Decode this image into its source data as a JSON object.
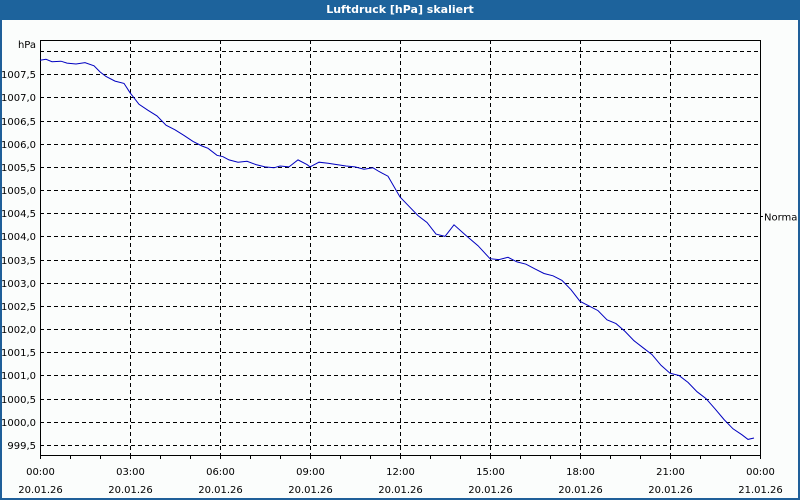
{
  "window": {
    "title": "Luftdruck [hPa] skaliert"
  },
  "chart_data": {
    "type": "line",
    "title": "Luftdruck [hPa] skaliert",
    "xlabel": "",
    "ylabel": "hPa",
    "ylim": [
      999.25,
      1008.2
    ],
    "y_ticks": [
      1007.5,
      1007.0,
      1006.5,
      1006.0,
      1005.5,
      1005.0,
      1004.5,
      1004.0,
      1003.5,
      1003.0,
      1002.5,
      1002.0,
      1001.5,
      1001.0,
      1000.5,
      1000.0,
      999.5
    ],
    "y_tick_labels": [
      "1007,5",
      "1007,0",
      "1006,5",
      "1006,0",
      "1005,5",
      "1005,0",
      "1004,5",
      "1004,0",
      "1003,5",
      "1003,0",
      "1002,5",
      "1002,0",
      "1001,5",
      "1001,0",
      "1000,5",
      "1000,0",
      "999,5"
    ],
    "x_ticks_hours": [
      0,
      3,
      6,
      9,
      12,
      15,
      18,
      21,
      24
    ],
    "x_tick_labels": [
      {
        "time": "00:00",
        "date": "20.01.26"
      },
      {
        "time": "03:00",
        "date": "20.01.26"
      },
      {
        "time": "06:00",
        "date": "20.01.26"
      },
      {
        "time": "09:00",
        "date": "20.01.26"
      },
      {
        "time": "12:00",
        "date": "20.01.26"
      },
      {
        "time": "15:00",
        "date": "20.01.26"
      },
      {
        "time": "18:00",
        "date": "20.01.26"
      },
      {
        "time": "21:00",
        "date": "20.01.26"
      },
      {
        "time": "00:00",
        "date": "21.01.26"
      }
    ],
    "right_axis_label": "Normal",
    "right_axis_value": 1004.45,
    "grid": true,
    "legend": null,
    "series": [
      {
        "name": "Luftdruck",
        "color": "#0000c0",
        "x_hours": [
          0.0,
          0.2,
          0.4,
          0.7,
          0.9,
          1.2,
          1.5,
          1.8,
          2.0,
          2.2,
          2.5,
          2.8,
          3.0,
          3.3,
          3.6,
          3.9,
          4.2,
          4.5,
          4.8,
          5.1,
          5.4,
          5.6,
          5.9,
          6.1,
          6.3,
          6.6,
          6.9,
          7.2,
          7.5,
          7.8,
          8.0,
          8.3,
          8.6,
          8.9,
          9.0,
          9.3,
          9.6,
          9.9,
          10.2,
          10.5,
          10.8,
          11.1,
          11.3,
          11.6,
          12.0,
          12.3,
          12.6,
          12.9,
          13.2,
          13.5,
          13.8,
          14.2,
          14.6,
          15.0,
          15.3,
          15.6,
          15.9,
          16.2,
          16.5,
          16.8,
          17.1,
          17.4,
          17.7,
          18.0,
          18.3,
          18.6,
          18.9,
          19.2,
          19.5,
          19.8,
          20.1,
          20.4,
          20.7,
          21.0,
          21.3,
          21.6,
          21.9,
          22.2,
          22.5,
          22.8,
          23.1,
          23.4,
          23.6,
          23.8
        ],
        "values": [
          1007.8,
          1007.82,
          1007.77,
          1007.78,
          1007.74,
          1007.72,
          1007.75,
          1007.68,
          1007.55,
          1007.45,
          1007.35,
          1007.3,
          1007.1,
          1006.85,
          1006.72,
          1006.6,
          1006.4,
          1006.3,
          1006.18,
          1006.05,
          1005.95,
          1005.9,
          1005.75,
          1005.72,
          1005.65,
          1005.6,
          1005.62,
          1005.55,
          1005.5,
          1005.48,
          1005.52,
          1005.5,
          1005.65,
          1005.55,
          1005.5,
          1005.6,
          1005.58,
          1005.55,
          1005.52,
          1005.5,
          1005.45,
          1005.48,
          1005.4,
          1005.3,
          1004.85,
          1004.65,
          1004.45,
          1004.3,
          1004.05,
          1004.0,
          1004.25,
          1004.02,
          1003.8,
          1003.52,
          1003.5,
          1003.55,
          1003.45,
          1003.4,
          1003.3,
          1003.2,
          1003.15,
          1003.05,
          1002.85,
          1002.6,
          1002.5,
          1002.4,
          1002.2,
          1002.12,
          1001.95,
          1001.75,
          1001.6,
          1001.45,
          1001.22,
          1001.05,
          1001.0,
          1000.85,
          1000.65,
          1000.5,
          1000.28,
          1000.05,
          999.85,
          999.72,
          999.62,
          999.65
        ]
      }
    ]
  }
}
